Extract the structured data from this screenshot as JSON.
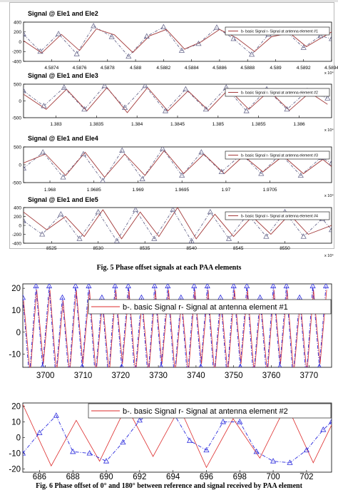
{
  "captions": {
    "fig5": "Fig. 5 Phase offset signals at each PAA elements",
    "fig6": "Fig. 6 Phase offset of 0° and 180° between reference and signal received by PAA element"
  },
  "colors": {
    "basic": "#6a6a8e",
    "antenna": "#a33a3a",
    "blue": "#2b2bdd",
    "red": "#dd2b2b"
  },
  "chart_data": [
    {
      "type": "line",
      "title": "Signal @ Ele1 and Ele2",
      "legend": "b- basic Signal r- Signal at antenna element #1",
      "xlim": [
        4.5872,
        4.5894
      ],
      "ylim": [
        -400,
        400
      ],
      "xticks": [
        "4.5874",
        "4.5876",
        "4.5878",
        "4.588",
        "4.5882",
        "4.5884",
        "4.5886",
        "4.5888",
        "4.589",
        "4.5892",
        "4.5894"
      ],
      "yticks": [
        "400",
        "200",
        "0",
        "-200",
        "-400"
      ],
      "multiplier": "x 10⁴",
      "series": [
        {
          "values": [
            [
              4.5872,
              150
            ],
            [
              4.58732,
              -200
            ],
            [
              4.58745,
              160
            ],
            [
              4.58758,
              -250
            ],
            [
              4.5877,
              320
            ],
            [
              4.58783,
              100
            ],
            [
              4.58795,
              -300
            ],
            [
              4.58808,
              110
            ],
            [
              4.5882,
              300
            ],
            [
              4.58833,
              -180
            ],
            [
              4.58845,
              -40
            ],
            [
              4.58858,
              290
            ],
            [
              4.5887,
              60
            ],
            [
              4.58883,
              -260
            ],
            [
              4.58895,
              150
            ],
            [
              4.58908,
              200
            ],
            [
              4.5892,
              -120
            ],
            [
              4.58932,
              120
            ],
            [
              4.5894,
              60
            ]
          ]
        },
        {
          "values": [
            [
              4.5872,
              20
            ],
            [
              4.58733,
              -230
            ],
            [
              4.58747,
              150
            ],
            [
              4.5876,
              -180
            ],
            [
              4.58772,
              260
            ],
            [
              4.58785,
              140
            ],
            [
              4.58798,
              -220
            ],
            [
              4.5881,
              120
            ],
            [
              4.58822,
              250
            ],
            [
              4.58835,
              -150
            ],
            [
              4.58847,
              0
            ],
            [
              4.5886,
              250
            ],
            [
              4.58872,
              80
            ],
            [
              4.58885,
              -200
            ],
            [
              4.58897,
              100
            ],
            [
              4.5891,
              180
            ],
            [
              4.58922,
              -100
            ],
            [
              4.58934,
              100
            ],
            [
              4.5894,
              200
            ]
          ]
        }
      ]
    },
    {
      "type": "line",
      "title": "Signal @ Ele1 and Ele3",
      "legend": "b- basic Signal r- Signal at antenna element #2",
      "xlim": [
        1.3826,
        1.3864
      ],
      "ylim": [
        -500,
        500
      ],
      "xticks": [
        "1.383",
        "1.3835",
        "1.384",
        "1.3845",
        "1.385",
        "1.3855",
        "1.386"
      ],
      "yticks": [
        "500",
        "0",
        "-500"
      ],
      "multiplier": "x 10⁴",
      "series": [
        {
          "values": [
            [
              1.3826,
              300
            ],
            [
              1.38285,
              -150
            ],
            [
              1.3831,
              400
            ],
            [
              1.38335,
              -250
            ],
            [
              1.3836,
              450
            ],
            [
              1.38385,
              -200
            ],
            [
              1.3841,
              450
            ],
            [
              1.38435,
              -300
            ],
            [
              1.3846,
              350
            ],
            [
              1.38485,
              -250
            ],
            [
              1.3851,
              400
            ],
            [
              1.38535,
              -300
            ],
            [
              1.3856,
              350
            ],
            [
              1.38585,
              -250
            ],
            [
              1.3861,
              300
            ],
            [
              1.38635,
              80
            ]
          ]
        },
        {
          "values": [
            [
              1.3826,
              200
            ],
            [
              1.38288,
              -250
            ],
            [
              1.38313,
              350
            ],
            [
              1.38338,
              -300
            ],
            [
              1.38363,
              400
            ],
            [
              1.38388,
              -350
            ],
            [
              1.38413,
              400
            ],
            [
              1.38438,
              -300
            ],
            [
              1.38463,
              300
            ],
            [
              1.38488,
              -280
            ],
            [
              1.38513,
              350
            ],
            [
              1.38538,
              -250
            ],
            [
              1.38563,
              300
            ],
            [
              1.38588,
              -280
            ],
            [
              1.38613,
              250
            ],
            [
              1.38635,
              -100
            ]
          ]
        }
      ]
    },
    {
      "type": "line",
      "title": "Signal @ Ele1 and Ele4",
      "legend": "b- basic Signal r- Signal at antenna element #3",
      "xlim": [
        1.9677,
        1.9712
      ],
      "ylim": [
        -500,
        500
      ],
      "xticks": [
        "1.968",
        "1.9685",
        "1.969",
        "1.9695",
        "1.97",
        "1.9705"
      ],
      "yticks": [
        "500",
        "0",
        "-500"
      ],
      "multiplier": "x 10⁴",
      "series": [
        {
          "values": [
            [
              1.9677,
              -100
            ],
            [
              1.96792,
              350
            ],
            [
              1.96815,
              -350
            ],
            [
              1.96838,
              300
            ],
            [
              1.9686,
              -450
            ],
            [
              1.96882,
              400
            ],
            [
              1.96905,
              -400
            ],
            [
              1.96928,
              450
            ],
            [
              1.9695,
              -300
            ],
            [
              1.96972,
              350
            ],
            [
              1.96995,
              -200
            ],
            [
              1.97018,
              300
            ],
            [
              1.9704,
              -250
            ],
            [
              1.97062,
              300
            ],
            [
              1.97085,
              -300
            ],
            [
              1.97108,
              200
            ],
            [
              1.9712,
              50
            ]
          ]
        },
        {
          "values": [
            [
              1.9677,
              50
            ],
            [
              1.96795,
              300
            ],
            [
              1.96818,
              -300
            ],
            [
              1.9684,
              350
            ],
            [
              1.96862,
              -350
            ],
            [
              1.96885,
              300
            ],
            [
              1.96908,
              -300
            ],
            [
              1.9693,
              400
            ],
            [
              1.96952,
              -250
            ],
            [
              1.96975,
              300
            ],
            [
              1.96998,
              -250
            ],
            [
              1.9702,
              250
            ],
            [
              1.97042,
              -200
            ],
            [
              1.97065,
              250
            ],
            [
              1.97088,
              -250
            ],
            [
              1.9711,
              150
            ],
            [
              1.9712,
              -50
            ]
          ]
        }
      ]
    },
    {
      "type": "line",
      "title": "Signal @ Ele1 and Ele5",
      "legend": "b- basic Signal r- Signal at antenna element #4",
      "xlim": [
        8522,
        8555
      ],
      "ylim": [
        -400,
        400
      ],
      "xticks": [
        "8525",
        "8530",
        "8535",
        "8540",
        "8545",
        "8550"
      ],
      "yticks": [
        "400",
        "200",
        "0",
        "-200",
        "-400"
      ],
      "multiplier": "x 10⁴",
      "series": [
        {
          "values": [
            [
              8522,
              100
            ],
            [
              8524,
              -200
            ],
            [
              8526,
              250
            ],
            [
              8528,
              -300
            ],
            [
              8530,
              300
            ],
            [
              8532,
              -350
            ],
            [
              8534,
              350
            ],
            [
              8536,
              -300
            ],
            [
              8538,
              350
            ],
            [
              8540,
              -350
            ],
            [
              8542,
              300
            ],
            [
              8544,
              -300
            ],
            [
              8546,
              250
            ],
            [
              8548,
              -250
            ],
            [
              8550,
              300
            ],
            [
              8552,
              -250
            ],
            [
              8554,
              150
            ],
            [
              8555,
              -100
            ]
          ]
        },
        {
          "values": [
            [
              8522,
              300
            ],
            [
              8524.5,
              -100
            ],
            [
              8526.5,
              200
            ],
            [
              8528.5,
              -250
            ],
            [
              8530.5,
              350
            ],
            [
              8532.5,
              -300
            ],
            [
              8534.5,
              300
            ],
            [
              8536.5,
              -250
            ],
            [
              8538.5,
              400
            ],
            [
              8540.5,
              -300
            ],
            [
              8542.5,
              250
            ],
            [
              8544.5,
              -250
            ],
            [
              8546.5,
              200
            ],
            [
              8548.5,
              -200
            ],
            [
              8550.5,
              250
            ],
            [
              8552.5,
              -200
            ],
            [
              8555,
              0
            ]
          ]
        }
      ]
    },
    {
      "type": "line",
      "legend": "b-. basic Signal r- Signal at antenna element #1",
      "xlim": [
        3694,
        3776
      ],
      "ylim": [
        -16,
        22
      ],
      "xticks": [
        "3700",
        "3710",
        "3720",
        "3730",
        "3740",
        "3750",
        "3760",
        "3770"
      ],
      "yticks": [
        "20",
        "10",
        "0",
        "-10"
      ],
      "period": 3.5,
      "amplitude": 21,
      "series": [
        {
          "name": "b-. basic Signal"
        },
        {
          "name": "r- Signal at antenna element #1"
        }
      ]
    },
    {
      "type": "line",
      "legend": "b-. basic Signal r- Signal at antenna element #2",
      "xlim": [
        685,
        703.5
      ],
      "ylim": [
        -22,
        22
      ],
      "xticks": [
        "686",
        "688",
        "690",
        "692",
        "694",
        "696",
        "698",
        "700",
        "702"
      ],
      "yticks": [
        "20",
        "10",
        "0",
        "-10",
        "-20"
      ],
      "series": [
        {
          "name": "b-. basic Signal",
          "values": [
            [
              685,
              -10
            ],
            [
              686,
              3
            ],
            [
              687,
              14
            ],
            [
              688,
              -9
            ],
            [
              689,
              -10
            ],
            [
              690,
              -15
            ],
            [
              691,
              -3
            ],
            [
              692,
              11
            ],
            [
              693,
              17
            ],
            [
              694,
              16
            ],
            [
              695,
              -2
            ],
            [
              696,
              -8
            ],
            [
              697,
              10
            ],
            [
              698,
              10
            ],
            [
              699,
              -9
            ],
            [
              700,
              -15
            ],
            [
              701,
              -16
            ],
            [
              702,
              -8
            ],
            [
              703,
              5
            ],
            [
              703.5,
              10
            ]
          ]
        },
        {
          "name": "r- Signal at antenna element #2",
          "values": [
            [
              685,
              21
            ],
            [
              686.7,
              -18
            ],
            [
              688.2,
              11
            ],
            [
              689.6,
              -15
            ],
            [
              691.2,
              20
            ],
            [
              692.8,
              -12
            ],
            [
              694.4,
              19
            ],
            [
              696,
              -19
            ],
            [
              697.6,
              12
            ],
            [
              699.2,
              -13
            ],
            [
              700.8,
              21
            ],
            [
              702.4,
              -16
            ],
            [
              703.5,
              8
            ]
          ]
        }
      ]
    }
  ]
}
